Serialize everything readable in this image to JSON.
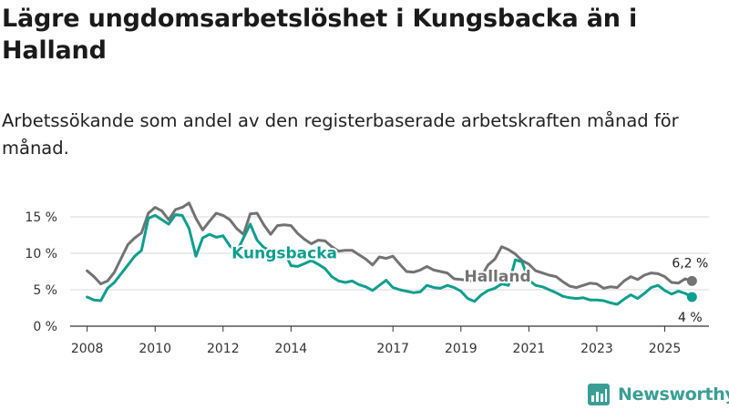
{
  "title": "Lägre ungdomsarbetslöshet i Kungsbacka än i Halland",
  "subtitle": "Arbetssökande som andel av den registerbaserade arbetskraften månad för månad.",
  "brand": "Newsworthy",
  "colors": {
    "halland": "#737373",
    "kungsbacka": "#0e9e8e",
    "grid": "#d9d9d9",
    "brand": "#3a9e95"
  },
  "chart_data": {
    "type": "line",
    "x_range": [
      2007.5,
      2026.3
    ],
    "ylim": [
      0,
      17
    ],
    "yticks": [
      0,
      5,
      10,
      15
    ],
    "ytick_labels": [
      "0 %",
      "5 %",
      "10 %",
      "15 %"
    ],
    "xticks": [
      2008,
      2010,
      2012,
      2014,
      2017,
      2019,
      2021,
      2023,
      2025
    ],
    "xtick_labels": [
      "2008",
      "2010",
      "2012",
      "2014",
      "2017",
      "2019",
      "2021",
      "2023",
      "2025"
    ],
    "series": [
      {
        "name": "Halland",
        "label": "Halland",
        "end_label": "6,2 %",
        "x": [
          2008.0,
          2008.2,
          2008.4,
          2008.6,
          2008.8,
          2009.0,
          2009.2,
          2009.4,
          2009.6,
          2009.8,
          2010.0,
          2010.2,
          2010.4,
          2010.6,
          2010.8,
          2011.0,
          2011.2,
          2011.4,
          2011.6,
          2011.8,
          2012.0,
          2012.2,
          2012.4,
          2012.6,
          2012.8,
          2013.0,
          2013.2,
          2013.4,
          2013.6,
          2013.8,
          2014.0,
          2014.2,
          2014.4,
          2014.6,
          2014.8,
          2015.0,
          2015.2,
          2015.4,
          2015.6,
          2015.8,
          2016.0,
          2016.2,
          2016.4,
          2016.6,
          2016.8,
          2017.0,
          2017.2,
          2017.4,
          2017.6,
          2017.8,
          2018.0,
          2018.2,
          2018.4,
          2018.6,
          2018.8,
          2019.0,
          2019.2,
          2019.4,
          2019.6,
          2019.8,
          2020.0,
          2020.2,
          2020.4,
          2020.6,
          2020.8,
          2021.0,
          2021.2,
          2021.4,
          2021.6,
          2021.8,
          2022.0,
          2022.2,
          2022.4,
          2022.6,
          2022.8,
          2023.0,
          2023.2,
          2023.4,
          2023.6,
          2023.8,
          2024.0,
          2024.2,
          2024.4,
          2024.6,
          2024.8,
          2025.0,
          2025.2,
          2025.4,
          2025.6,
          2025.8
        ],
        "values": [
          7.6,
          6.8,
          5.8,
          6.2,
          7.4,
          9.3,
          11.2,
          12.1,
          12.8,
          15.5,
          16.3,
          15.8,
          14.6,
          16.0,
          16.3,
          16.9,
          14.8,
          13.2,
          14.4,
          15.5,
          15.2,
          14.6,
          13.4,
          12.6,
          15.4,
          15.5,
          13.9,
          12.6,
          13.8,
          13.9,
          13.8,
          12.7,
          11.9,
          11.3,
          11.8,
          11.7,
          10.9,
          10.3,
          10.4,
          10.4,
          9.8,
          9.2,
          8.4,
          9.5,
          9.3,
          9.6,
          8.5,
          7.5,
          7.4,
          7.7,
          8.2,
          7.7,
          7.5,
          7.3,
          6.5,
          6.4,
          6.3,
          6.1,
          6.8,
          8.4,
          9.2,
          10.9,
          10.5,
          9.9,
          9.0,
          8.5,
          7.6,
          7.3,
          7.0,
          6.8,
          6.1,
          5.5,
          5.3,
          5.6,
          5.9,
          5.8,
          5.2,
          5.4,
          5.3,
          6.2,
          6.8,
          6.4,
          7.0,
          7.3,
          7.2,
          6.8,
          6.0,
          5.9,
          6.5,
          6.2
        ]
      },
      {
        "name": "Kungsbacka",
        "label": "Kungsbacka",
        "end_label": "4 %",
        "x": [
          2008.0,
          2008.2,
          2008.4,
          2008.6,
          2008.8,
          2009.0,
          2009.2,
          2009.4,
          2009.6,
          2009.8,
          2010.0,
          2010.2,
          2010.4,
          2010.6,
          2010.8,
          2011.0,
          2011.2,
          2011.4,
          2011.6,
          2011.8,
          2012.0,
          2012.2,
          2012.4,
          2012.6,
          2012.8,
          2013.0,
          2013.2,
          2013.4,
          2013.6,
          2013.8,
          2014.0,
          2014.2,
          2014.4,
          2014.6,
          2014.8,
          2015.0,
          2015.2,
          2015.4,
          2015.6,
          2015.8,
          2016.0,
          2016.2,
          2016.4,
          2016.6,
          2016.8,
          2017.0,
          2017.2,
          2017.4,
          2017.6,
          2017.8,
          2018.0,
          2018.2,
          2018.4,
          2018.6,
          2018.8,
          2019.0,
          2019.2,
          2019.4,
          2019.6,
          2019.8,
          2020.0,
          2020.2,
          2020.4,
          2020.6,
          2020.8,
          2021.0,
          2021.2,
          2021.4,
          2021.6,
          2021.8,
          2022.0,
          2022.2,
          2022.4,
          2022.6,
          2022.8,
          2023.0,
          2023.2,
          2023.4,
          2023.6,
          2023.8,
          2024.0,
          2024.2,
          2024.4,
          2024.6,
          2024.8,
          2025.0,
          2025.2,
          2025.4,
          2025.6,
          2025.8
        ],
        "values": [
          4.0,
          3.6,
          3.5,
          5.2,
          6.0,
          7.2,
          8.4,
          9.6,
          10.4,
          14.8,
          15.2,
          14.6,
          14.0,
          15.3,
          15.2,
          13.4,
          9.6,
          12.1,
          12.6,
          12.2,
          12.4,
          11.0,
          10.2,
          12.1,
          14.0,
          11.8,
          10.8,
          10.3,
          9.6,
          10.2,
          8.3,
          8.2,
          8.6,
          9.0,
          8.5,
          7.9,
          6.8,
          6.2,
          6.0,
          6.2,
          5.7,
          5.4,
          4.9,
          5.6,
          6.3,
          5.3,
          5.0,
          4.8,
          4.6,
          4.7,
          5.6,
          5.3,
          5.2,
          5.6,
          5.3,
          4.8,
          3.8,
          3.4,
          4.3,
          4.9,
          5.2,
          5.8,
          5.6,
          9.1,
          8.8,
          6.3,
          5.6,
          5.4,
          5.0,
          4.6,
          4.1,
          3.9,
          3.8,
          3.9,
          3.6,
          3.6,
          3.5,
          3.2,
          3.0,
          3.7,
          4.3,
          3.8,
          4.5,
          5.3,
          5.6,
          4.9,
          4.4,
          4.8,
          4.5,
          4.0
        ]
      }
    ]
  }
}
